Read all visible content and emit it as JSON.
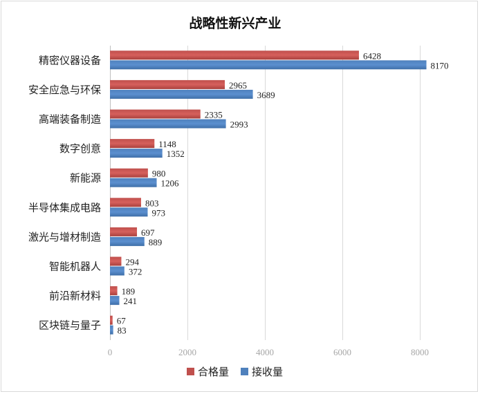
{
  "chart_data": {
    "type": "bar",
    "orientation": "horizontal",
    "title": "战略性新兴产业",
    "categories": [
      "精密仪器设备",
      "安全应急与环保",
      "高端装备制造",
      "数字创意",
      "新能源",
      "半导体集成电路",
      "激光与增材制造",
      "智能机器人",
      "前沿新材料",
      "区块链与量子"
    ],
    "series": [
      {
        "name": "合格量",
        "color": "#c0504d",
        "values": [
          6428,
          2965,
          2335,
          1148,
          980,
          803,
          697,
          294,
          189,
          67
        ]
      },
      {
        "name": "接收量",
        "color": "#4f81bd",
        "values": [
          8170,
          3689,
          2993,
          1352,
          1206,
          973,
          889,
          372,
          241,
          83
        ]
      }
    ],
    "xlim": [
      0,
      8000
    ],
    "xticks": [
      0,
      2000,
      4000,
      6000,
      8000
    ],
    "grid": true,
    "legend": "bottom"
  }
}
